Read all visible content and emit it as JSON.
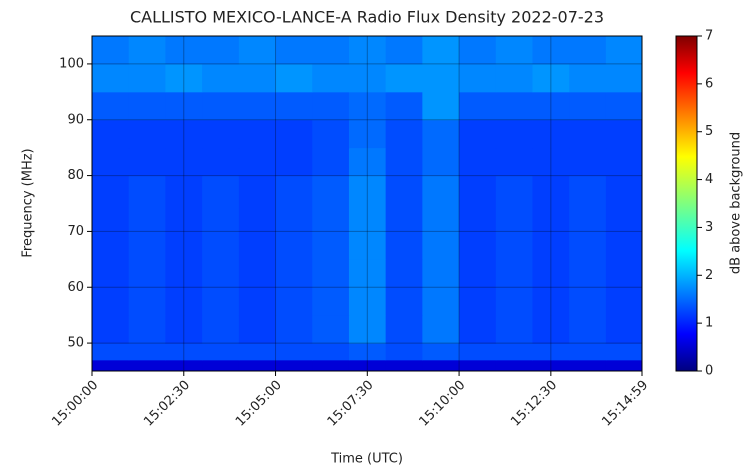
{
  "chart_data": {
    "type": "heatmap",
    "title": "CALLISTO MEXICO-LANCE-A Radio Flux Density 2022-07-23",
    "xlabel": "Time (UTC)",
    "ylabel": "Frequency (MHz)",
    "colorbar_label": "dB above background",
    "colormap": "jet",
    "xlim": [
      "15:00:00",
      "15:14:59"
    ],
    "xticks": [
      "15:00:00",
      "15:02:30",
      "15:05:00",
      "15:07:30",
      "15:10:00",
      "15:12:30",
      "15:14:59"
    ],
    "ylim": [
      45,
      105
    ],
    "yticks": [
      50,
      60,
      70,
      80,
      90,
      100
    ],
    "clim": [
      0,
      7
    ],
    "cticks": [
      0,
      1,
      2,
      3,
      4,
      5,
      6,
      7
    ],
    "grid": true,
    "xbins": [
      "15:00:00",
      "15:01:00",
      "15:02:00",
      "15:03:00",
      "15:04:00",
      "15:05:00",
      "15:06:00",
      "15:07:00",
      "15:08:00",
      "15:09:00",
      "15:10:00",
      "15:11:00",
      "15:12:00",
      "15:13:00",
      "15:14:00",
      "15:14:59"
    ],
    "ybins": [
      45,
      47,
      50,
      55,
      60,
      65,
      70,
      75,
      80,
      85,
      90,
      95,
      100,
      105
    ],
    "values": [
      [
        0.6,
        0.6,
        0.6,
        0.6,
        0.6,
        0.6,
        0.6,
        0.6,
        0.6,
        0.6,
        0.6,
        0.6,
        0.6,
        0.6,
        0.6
      ],
      [
        1.4,
        1.4,
        1.4,
        1.4,
        1.4,
        1.4,
        1.4,
        1.5,
        1.4,
        1.5,
        1.4,
        1.4,
        1.4,
        1.4,
        1.4
      ],
      [
        1.3,
        1.4,
        1.3,
        1.4,
        1.3,
        1.4,
        1.5,
        1.8,
        1.4,
        1.7,
        1.3,
        1.4,
        1.3,
        1.4,
        1.3
      ],
      [
        1.3,
        1.4,
        1.3,
        1.4,
        1.3,
        1.4,
        1.5,
        1.8,
        1.4,
        1.7,
        1.3,
        1.4,
        1.3,
        1.4,
        1.3
      ],
      [
        1.3,
        1.4,
        1.3,
        1.4,
        1.3,
        1.4,
        1.5,
        1.8,
        1.4,
        1.7,
        1.3,
        1.4,
        1.3,
        1.4,
        1.3
      ],
      [
        1.3,
        1.4,
        1.3,
        1.4,
        1.3,
        1.4,
        1.5,
        1.8,
        1.4,
        1.7,
        1.3,
        1.4,
        1.3,
        1.4,
        1.3
      ],
      [
        1.3,
        1.4,
        1.3,
        1.4,
        1.3,
        1.4,
        1.5,
        1.8,
        1.4,
        1.7,
        1.3,
        1.4,
        1.3,
        1.4,
        1.3
      ],
      [
        1.3,
        1.4,
        1.3,
        1.4,
        1.3,
        1.4,
        1.5,
        1.8,
        1.4,
        1.7,
        1.3,
        1.4,
        1.3,
        1.4,
        1.3
      ],
      [
        1.3,
        1.3,
        1.3,
        1.3,
        1.3,
        1.3,
        1.4,
        1.7,
        1.4,
        1.6,
        1.3,
        1.3,
        1.3,
        1.3,
        1.3
      ],
      [
        1.3,
        1.3,
        1.3,
        1.3,
        1.3,
        1.3,
        1.4,
        1.6,
        1.4,
        1.6,
        1.3,
        1.3,
        1.3,
        1.3,
        1.3
      ],
      [
        1.5,
        1.5,
        1.5,
        1.5,
        1.5,
        1.5,
        1.5,
        1.6,
        1.5,
        1.9,
        1.5,
        1.5,
        1.5,
        1.5,
        1.5
      ],
      [
        1.8,
        1.8,
        1.9,
        1.8,
        1.8,
        1.9,
        1.8,
        1.8,
        1.9,
        1.9,
        1.8,
        1.8,
        1.9,
        1.8,
        1.8
      ],
      [
        1.7,
        1.8,
        1.7,
        1.7,
        1.8,
        1.7,
        1.7,
        1.8,
        1.7,
        1.9,
        1.7,
        1.8,
        1.7,
        1.7,
        1.8
      ]
    ]
  }
}
